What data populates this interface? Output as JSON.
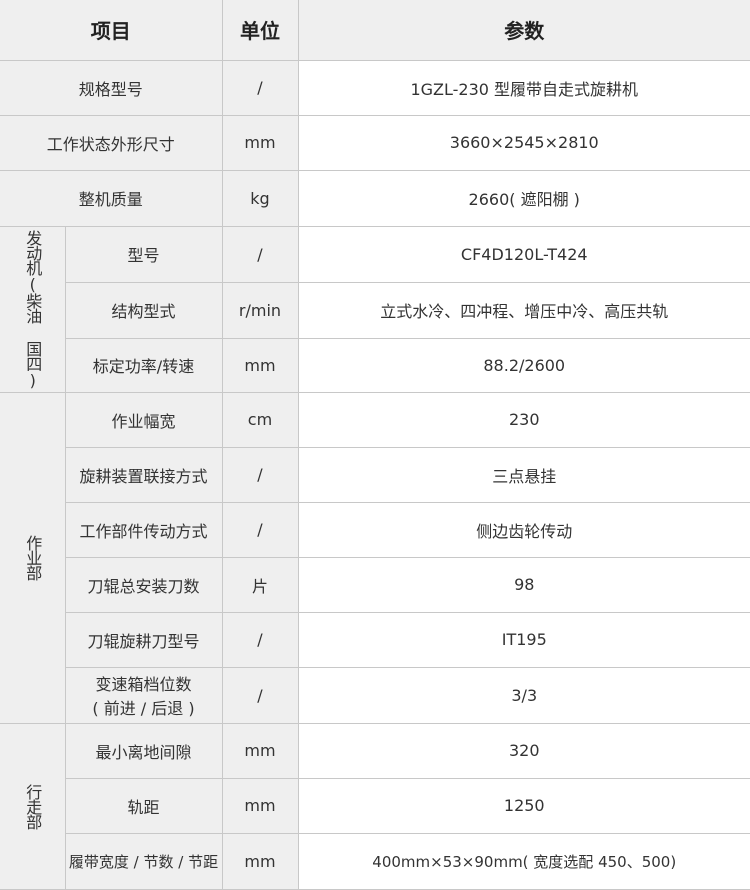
{
  "header": {
    "item": "项目",
    "unit": "单位",
    "value": "参数"
  },
  "rows": [
    {
      "item": "规格型号",
      "unit": "/",
      "value": "1GZL-230 型履带自走式旋耕机"
    },
    {
      "item": "工作状态外形尺寸",
      "unit": "mm",
      "value": "3660×2545×2810"
    },
    {
      "item": "整机质量",
      "unit": "kg",
      "value": "2660( 遮阳棚 )"
    }
  ],
  "groups": [
    {
      "label": "发动机(柴油 国四)",
      "rows": [
        {
          "item": "型号",
          "unit": "/",
          "value": "CF4D120L-T424"
        },
        {
          "item": "结构型式",
          "unit": "r/min",
          "value": "立式水冷、四冲程、增压中冷、高压共轨"
        },
        {
          "item": "标定功率/转速",
          "unit": "mm",
          "value": "88.2/2600"
        }
      ]
    },
    {
      "label": "作业部",
      "rows": [
        {
          "item": "作业幅宽",
          "unit": "cm",
          "value": "230"
        },
        {
          "item": "旋耕装置联接方式",
          "unit": "/",
          "value": "三点悬挂"
        },
        {
          "item": "工作部件传动方式",
          "unit": "/",
          "value": "侧边齿轮传动"
        },
        {
          "item": "刀辊总安装刀数",
          "unit": "片",
          "value": "98"
        },
        {
          "item": "刀辊旋耕刀型号",
          "unit": "/",
          "value": "IT195"
        },
        {
          "item": "变速箱档位数",
          "item2": "( 前进 / 后退 )",
          "unit": "/",
          "value": "3/3"
        }
      ]
    },
    {
      "label": "行走部",
      "rows": [
        {
          "item": "最小离地间隙",
          "unit": "mm",
          "value": "320"
        },
        {
          "item": "轨距",
          "unit": "mm",
          "value": "1250"
        },
        {
          "item": "履带宽度 / 节数 / 节距",
          "unit": "mm",
          "value": "400mm×53×90mm( 宽度选配 450、500)"
        }
      ]
    }
  ]
}
